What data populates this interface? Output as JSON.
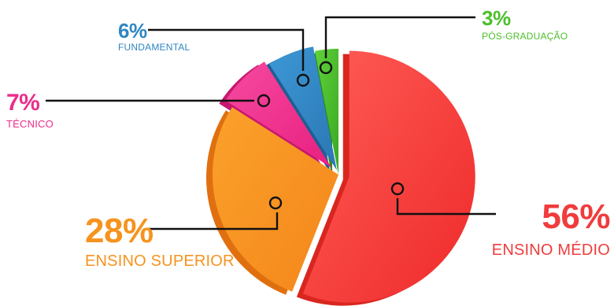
{
  "chart_data": {
    "type": "pie",
    "title": "",
    "slices": [
      {
        "label": "ENSINO MÉDIO",
        "value": 56,
        "value_label": "56%",
        "color": "#f03c3c",
        "shadow": "#d9261f"
      },
      {
        "label": "ENSINO SUPERIOR",
        "value": 28,
        "value_label": "28%",
        "color": "#f6931e",
        "shadow": "#e0700f"
      },
      {
        "label": "TÉCNICO",
        "value": 7,
        "value_label": "7%",
        "color": "#ec2d8c",
        "shadow": "#c7186f"
      },
      {
        "label": "FUNDAMENTAL",
        "value": 6,
        "value_label": "6%",
        "color": "#2f86c3",
        "shadow": "#1f5f93"
      },
      {
        "label": "PÓS-GRADUAÇÃO",
        "value": 3,
        "value_label": "3%",
        "color": "#4cbf2a",
        "shadow": "#2e8a19"
      }
    ]
  }
}
